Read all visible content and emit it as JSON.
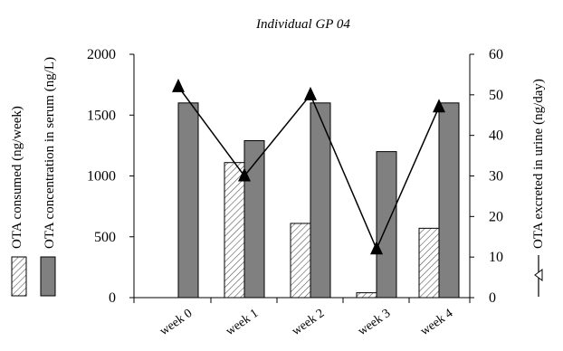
{
  "chart_data": {
    "type": "bar",
    "title": "Individual GP 04",
    "categories": [
      "week 0",
      "week 1",
      "week 2",
      "week 3",
      "week 4"
    ],
    "series": [
      {
        "name": "OTA consumed (ng/week)",
        "axis": "left",
        "kind": "bar",
        "pattern": "hatched",
        "values": [
          0,
          1110,
          610,
          40,
          570
        ]
      },
      {
        "name": "OTA concentration in serum (ng/L)",
        "axis": "left",
        "kind": "bar",
        "color": "#808080",
        "values": [
          1600,
          1290,
          1600,
          1200,
          1600
        ]
      },
      {
        "name": "OTA excreted in urine (ng/day)",
        "axis": "right",
        "kind": "line",
        "marker": "triangle",
        "values": [
          52,
          30,
          50,
          12,
          47
        ]
      }
    ],
    "y_left": {
      "ylim": [
        0,
        2000
      ],
      "ticks": [
        "0",
        "500",
        "1000",
        "1500",
        "2000"
      ],
      "labels": [
        "OTA consumed (ng/week)",
        "OTA concentration in serum (ng/L)"
      ]
    },
    "y_right": {
      "ylim": [
        0,
        60
      ],
      "ticks": [
        "0",
        "10",
        "20",
        "30",
        "40",
        "50",
        "60"
      ],
      "label": "OTA excreted in urine (ng/day)"
    },
    "grid": false
  }
}
